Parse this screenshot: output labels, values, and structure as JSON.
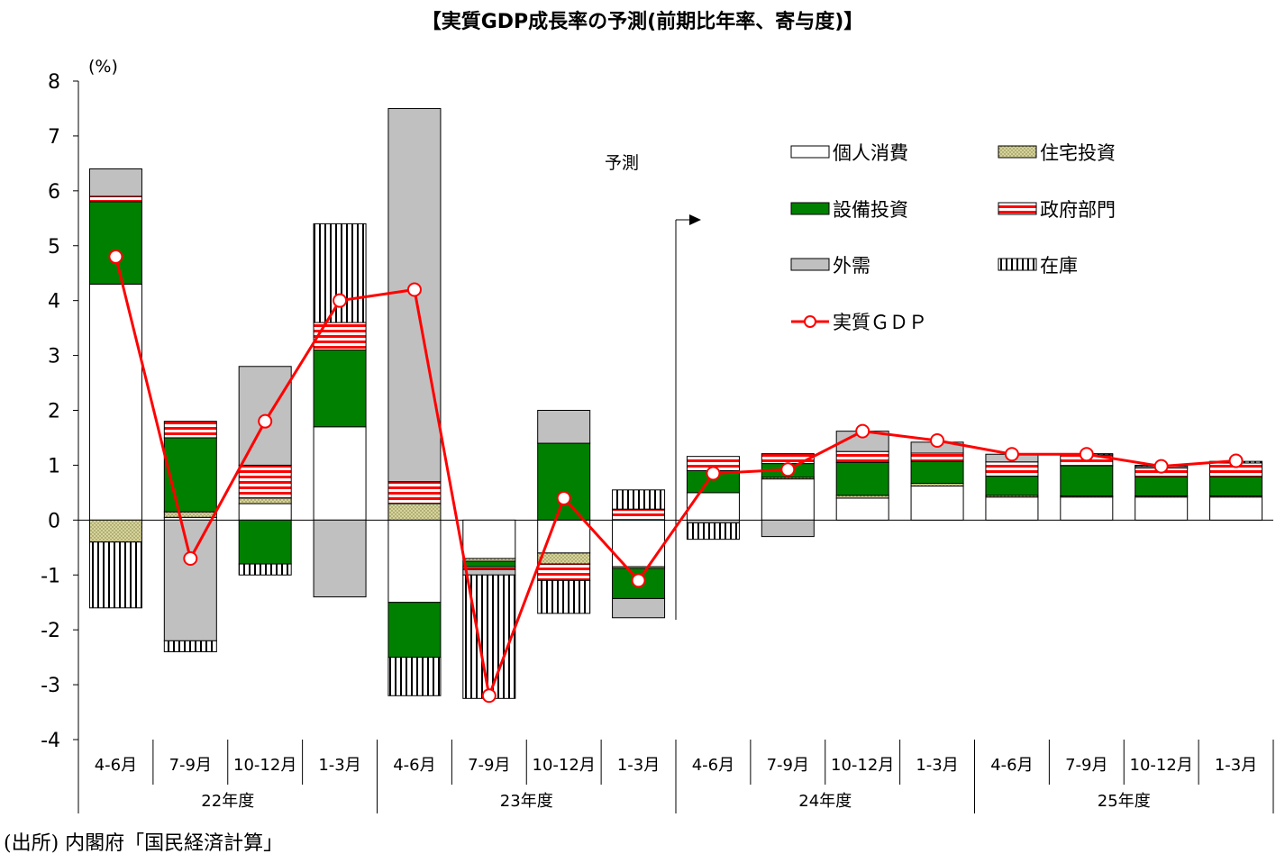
{
  "title": "【実質GDP成長率の予測(前期比年率、寄与度)】",
  "source": "(出所) 内閣府「国民経済計算」",
  "forecast_label": "予測",
  "colors": {
    "consumption": "#ffffff",
    "housing": "#d8d6a0",
    "capex": "#008000",
    "government": "#ff0000",
    "external": "#c0c0c0",
    "inventory": "#000000",
    "gdp_line": "#ff0000"
  },
  "chart_data": {
    "type": "bar",
    "stacked": true,
    "title": "【実質GDP成長率の予測(前期比年率、寄与度)】",
    "y_unit": "(%)",
    "ylim": [
      -4,
      8
    ],
    "y_ticks": [
      "-4",
      "-3",
      "-2",
      "-1",
      "0",
      "1",
      "2",
      "3",
      "4",
      "5",
      "6",
      "7",
      "8"
    ],
    "categories": [
      "4-6月",
      "7-9月",
      "10-12月",
      "1-3月",
      "4-6月",
      "7-9月",
      "10-12月",
      "1-3月",
      "4-6月",
      "7-9月",
      "10-12月",
      "1-3月",
      "4-6月",
      "7-9月",
      "10-12月",
      "1-3月"
    ],
    "fiscal_years": [
      {
        "label": "22年度",
        "quarters": 4
      },
      {
        "label": "23年度",
        "quarters": 4
      },
      {
        "label": "24年度",
        "quarters": 4
      },
      {
        "label": "25年度",
        "quarters": 4
      }
    ],
    "forecast_start_index": 8,
    "series": [
      {
        "name": "個人消費",
        "key": "consumption",
        "values": [
          4.3,
          0.05,
          0.3,
          1.7,
          -1.5,
          -0.7,
          -0.6,
          -0.85,
          0.5,
          0.75,
          0.4,
          0.62,
          0.42,
          0.42,
          0.42,
          0.42
        ]
      },
      {
        "name": "住宅投資",
        "key": "housing",
        "values": [
          -0.4,
          0.1,
          0.1,
          0.0,
          0.3,
          -0.05,
          -0.2,
          -0.03,
          0.0,
          0.03,
          0.05,
          0.05,
          0.03,
          0.02,
          0.02,
          0.02
        ]
      },
      {
        "name": "設備投資",
        "key": "capex",
        "values": [
          1.5,
          1.35,
          -0.8,
          1.4,
          -1.0,
          -0.1,
          1.4,
          -0.55,
          0.4,
          0.25,
          0.6,
          0.4,
          0.35,
          0.55,
          0.35,
          0.35
        ]
      },
      {
        "name": "政府部門",
        "key": "government",
        "values": [
          0.1,
          0.3,
          0.6,
          0.5,
          0.4,
          -0.05,
          -0.3,
          0.2,
          0.26,
          0.18,
          0.2,
          0.15,
          0.26,
          0.2,
          0.16,
          0.25
        ]
      },
      {
        "name": "外需",
        "key": "external",
        "values": [
          0.5,
          -2.2,
          1.8,
          -1.4,
          6.8,
          -0.1,
          0.6,
          -0.35,
          -0.05,
          -0.3,
          0.37,
          0.2,
          0.14,
          0.0,
          0.03,
          0.0
        ]
      },
      {
        "name": "在庫",
        "key": "inventory",
        "values": [
          -1.2,
          -0.2,
          -0.2,
          1.8,
          -0.7,
          -2.25,
          -0.6,
          0.35,
          -0.3,
          0.0,
          0.0,
          0.0,
          0.0,
          0.02,
          0.02,
          0.03
        ]
      }
    ],
    "line": {
      "name": "実質GDP",
      "values": [
        4.8,
        -0.7,
        1.8,
        4.0,
        4.2,
        -3.2,
        0.4,
        -1.1,
        0.85,
        0.92,
        1.62,
        1.45,
        1.2,
        1.2,
        0.98,
        1.08
      ]
    },
    "legend_labels": {
      "consumption": "個人消費",
      "housing": "住宅投資",
      "capex": "設備投資",
      "government": "政府部門",
      "external": "外需",
      "inventory": "在庫",
      "gdp": "実質ＧＤＰ"
    },
    "legend_position": "top-right",
    "grid": false
  }
}
